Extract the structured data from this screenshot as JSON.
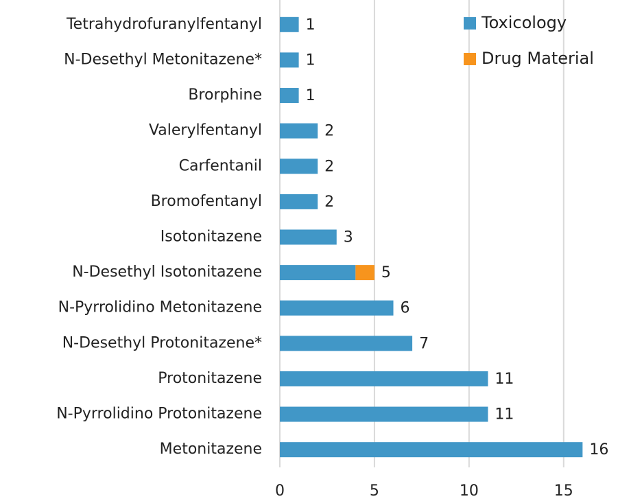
{
  "chart_data": {
    "type": "stacked_bar_horizontal",
    "categories": [
      "Tetrahydrofuranylfentanyl",
      "N-Desethyl Metonitazene*",
      "Brorphine",
      "Valerylfentanyl",
      "Carfentanil",
      "Bromofentanyl",
      "Isotonitazene",
      "N-Desethyl Isotonitazene",
      "N-Pyrrolidino Metonitazene",
      "N-Desethyl Protonitazene*",
      "Protonitazene",
      "N-Pyrrolidino Protonitazene",
      "Metonitazene"
    ],
    "series": [
      {
        "name": "Toxicology",
        "color": "#4197c7",
        "values": [
          1,
          1,
          1,
          2,
          2,
          2,
          3,
          4,
          6,
          7,
          11,
          11,
          16
        ]
      },
      {
        "name": "Drug Material",
        "color": "#f7941d",
        "values": [
          0,
          0,
          0,
          0,
          0,
          0,
          0,
          1,
          0,
          0,
          0,
          0,
          0
        ]
      }
    ],
    "totals": [
      1,
      1,
      1,
      2,
      2,
      2,
      3,
      5,
      6,
      7,
      11,
      11,
      16
    ],
    "xlim": [
      0,
      17.8
    ],
    "xticks": [
      0,
      5,
      10,
      15
    ],
    "grid": true,
    "legend": "top-right"
  }
}
